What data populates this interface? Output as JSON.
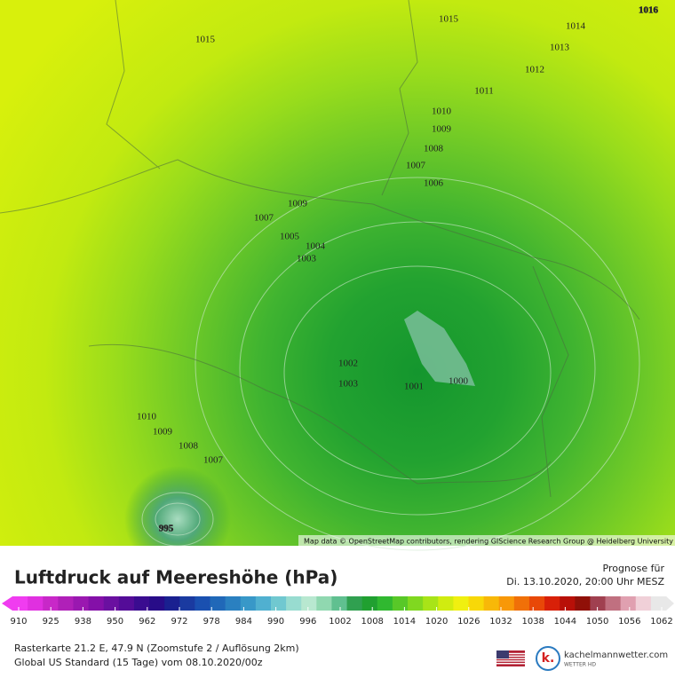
{
  "map": {
    "contour_labels": [
      "1015",
      "1016",
      "1014",
      "1013",
      "1012",
      "1011",
      "1010",
      "1009",
      "1008",
      "1007",
      "1006",
      "1015",
      "1009",
      "1007",
      "1005",
      "1004",
      "1003",
      "1002",
      "1003",
      "1001",
      "1000",
      "1010",
      "1009",
      "1008",
      "1007",
      "995"
    ],
    "attribution": "Map data © OpenStreetMap contributors, rendering GIScience Research Group @ Heidelberg University"
  },
  "legend": {
    "title": "Luftdruck auf Meereshöhe (hPa)",
    "forecast_label": "Prognose für",
    "forecast_time": "Di. 13.10.2020, 20:00 Uhr MESZ",
    "ticks": [
      910,
      925,
      938,
      950,
      962,
      972,
      978,
      984,
      990,
      996,
      1002,
      1008,
      1014,
      1020,
      1026,
      1032,
      1038,
      1044,
      1050,
      1056,
      1062
    ],
    "colors": [
      "#f03cf0",
      "#e030e0",
      "#c828c8",
      "#b020b8",
      "#9a18b0",
      "#8410a8",
      "#6a10a0",
      "#540c98",
      "#3a0c90",
      "#280c88",
      "#1a2090",
      "#1a3aa0",
      "#1a50b0",
      "#2068b8",
      "#2a80c0",
      "#3898c8",
      "#50b0d0",
      "#70c8d0",
      "#98dcd0",
      "#b8e8d0",
      "#90d8b0",
      "#60c090",
      "#30a050",
      "#20a030",
      "#30b830",
      "#58c828",
      "#80d820",
      "#a8e418",
      "#d0ec10",
      "#f0f010",
      "#f8d808",
      "#f8b808",
      "#f89808",
      "#f07008",
      "#e84808",
      "#d82008",
      "#b81008",
      "#901008",
      "#a04050",
      "#c07080",
      "#e0a0b0",
      "#f0d0d8",
      "#e8e8e8"
    ]
  },
  "footer": {
    "line1": "Rasterkarte 21.2 E, 47.9 N (Zoomstufe 2 / Auflösung 2km)",
    "line2": "Global US Standard (15 Tage) vom 08.10.2020/00z",
    "logo_mark": "k.",
    "logo_name": "kachelmannwetter.com",
    "logo_sub": "WETTER HD"
  }
}
